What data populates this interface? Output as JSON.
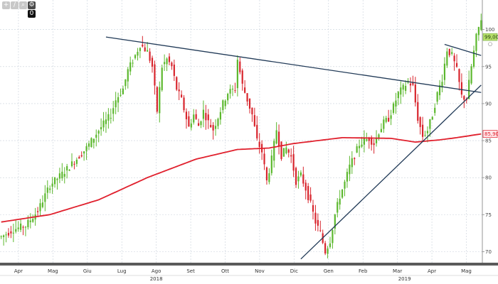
{
  "toolbar": {
    "buttons": [
      {
        "icon": "plus-icon",
        "glyph": "+"
      },
      {
        "icon": "pencil-icon",
        "glyph": "/"
      },
      {
        "icon": "zoom-icon",
        "glyph": "⌕"
      },
      {
        "icon": "settings-icon",
        "glyph": "⚙"
      }
    ],
    "period_label": "0"
  },
  "colors": {
    "background": "#ffffff",
    "grid": "#c8d0da",
    "up": "#5cb82e",
    "down": "#d8252d",
    "moving_average": "#e0202d",
    "trendline": "#213a57",
    "price_tag": "#b6e06a",
    "ma_tag": "#ffe7ea"
  },
  "chart_data": {
    "type": "candlestick",
    "x_axis": {
      "months": [
        "Apr",
        "Mag",
        "Giu",
        "Lug",
        "Ago",
        "Set",
        "Ott",
        "Nov",
        "Dic",
        "Gen",
        "Feb",
        "Mar",
        "Apr",
        "Mag"
      ],
      "years": [
        "2018",
        "2019"
      ]
    },
    "y_axis": {
      "ticks": [
        70,
        75,
        80,
        85,
        90,
        95,
        100
      ],
      "range": [
        68.5,
        104
      ],
      "position": "right",
      "grid": true
    },
    "price_tag": {
      "value": 99.0,
      "label": "99,00"
    },
    "ma_tag": {
      "value": 85.9,
      "label": "85,90"
    },
    "price_path": [
      [
        0,
        72
      ],
      [
        5,
        73
      ],
      [
        10,
        73.5
      ],
      [
        15,
        75.5
      ],
      [
        20,
        79
      ],
      [
        25,
        80.5
      ],
      [
        30,
        82.2
      ],
      [
        35,
        84
      ],
      [
        40,
        86.4
      ],
      [
        45,
        88.5
      ],
      [
        47,
        90.5
      ],
      [
        50,
        92
      ],
      [
        52,
        94.5
      ],
      [
        55,
        96.5
      ],
      [
        57,
        98
      ],
      [
        60,
        97
      ],
      [
        62,
        95
      ],
      [
        64,
        89
      ],
      [
        66,
        95
      ],
      [
        68,
        96
      ],
      [
        70,
        95
      ],
      [
        72,
        92
      ],
      [
        74,
        90.5
      ],
      [
        77,
        86.8
      ],
      [
        79,
        88.5
      ],
      [
        81,
        87
      ],
      [
        83,
        89
      ],
      [
        85,
        87.5
      ],
      [
        87,
        86.5
      ],
      [
        89,
        88.2
      ],
      [
        91,
        90
      ],
      [
        93,
        91.5
      ],
      [
        96,
        92
      ],
      [
        97,
        96
      ],
      [
        99,
        92.5
      ],
      [
        101,
        90.5
      ],
      [
        103,
        88.5
      ],
      [
        105,
        85
      ],
      [
        107,
        83.5
      ],
      [
        109,
        79.5
      ],
      [
        111,
        82.5
      ],
      [
        113,
        86.5
      ],
      [
        115,
        83
      ],
      [
        117,
        84
      ],
      [
        119,
        82.8
      ],
      [
        121,
        79.5
      ],
      [
        123,
        80.3
      ],
      [
        125,
        78.5
      ],
      [
        127,
        76.4
      ],
      [
        129,
        74
      ],
      [
        131,
        72.5
      ],
      [
        133,
        70
      ],
      [
        135,
        71.5
      ],
      [
        137,
        75
      ],
      [
        139,
        77.5
      ],
      [
        141,
        79.3
      ],
      [
        143,
        81.5
      ],
      [
        145,
        83
      ],
      [
        147,
        84.5
      ],
      [
        149,
        85
      ],
      [
        151,
        85.3
      ],
      [
        153,
        84.6
      ],
      [
        155,
        86.2
      ],
      [
        157,
        87.4
      ],
      [
        159,
        88
      ],
      [
        161,
        89.6
      ],
      [
        163,
        91.4
      ],
      [
        165,
        92.1
      ],
      [
        167,
        93
      ],
      [
        169,
        92.3
      ],
      [
        171,
        88
      ],
      [
        173,
        85.6
      ],
      [
        175,
        86.4
      ],
      [
        177,
        88.5
      ],
      [
        179,
        91.3
      ],
      [
        181,
        93.4
      ],
      [
        183,
        97.3
      ],
      [
        185,
        96.5
      ],
      [
        187,
        94.5
      ],
      [
        189,
        91
      ],
      [
        191,
        90.6
      ],
      [
        193,
        95
      ],
      [
        195,
        99
      ],
      [
        197,
        101.5
      ]
    ],
    "moving_average_path": [
      [
        0,
        74
      ],
      [
        20,
        75
      ],
      [
        40,
        77
      ],
      [
        60,
        80
      ],
      [
        80,
        82.5
      ],
      [
        97,
        83.8
      ],
      [
        110,
        84
      ],
      [
        120,
        84.6
      ],
      [
        140,
        85.4
      ],
      [
        160,
        85.3
      ],
      [
        170,
        84.8
      ],
      [
        180,
        85.1
      ],
      [
        187,
        85.4
      ],
      [
        197,
        85.9
      ]
    ],
    "trendlines": [
      {
        "from": [
          43,
          99
        ],
        "to": [
          197,
          91.5
        ]
      },
      {
        "from": [
          123,
          69
        ],
        "to": [
          197,
          92.5
        ]
      },
      {
        "from": [
          182,
          98
        ],
        "to": [
          197,
          96.5
        ]
      }
    ]
  }
}
